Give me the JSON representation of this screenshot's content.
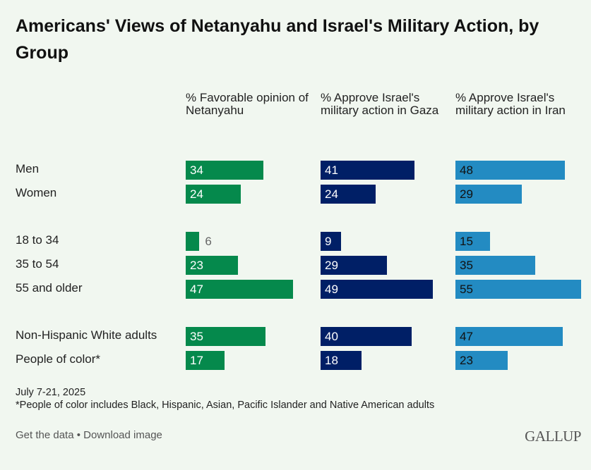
{
  "chart_data": {
    "type": "bar",
    "orientation": "horizontal",
    "title": "Americans' Views of Netanyahu and Israel's Military Action, by Group",
    "categories": [
      "Men",
      "Women",
      "18 to 34",
      "35 to 54",
      "55 and older",
      "Non-Hispanic White adults",
      "People of color*"
    ],
    "groups": [
      [
        0,
        1
      ],
      [
        2,
        3,
        4
      ],
      [
        5,
        6
      ]
    ],
    "series": [
      {
        "name": "% Favorable opinion of Netanyahu",
        "color": "#05894c",
        "label_color": "#ffffff",
        "values": [
          34,
          24,
          6,
          23,
          47,
          35,
          17
        ]
      },
      {
        "name": "% Approve Israel's military action in Gaza",
        "color": "#001f66",
        "label_color": "#ffffff",
        "values": [
          41,
          24,
          9,
          29,
          49,
          40,
          18
        ]
      },
      {
        "name": "% Approve Israel's military action in Iran",
        "color": "#238bc2",
        "label_color": "#111111",
        "values": [
          48,
          29,
          15,
          35,
          55,
          47,
          23
        ]
      }
    ],
    "grid": false
  },
  "notes": {
    "date": "July 7-21, 2025",
    "footnote": "*People of color includes Black, Hispanic, Asian, Pacific Islander and Native American adults"
  },
  "footer": {
    "get_data": "Get the data",
    "separator": " • ",
    "download": "Download image",
    "logo": "GALLUP"
  }
}
